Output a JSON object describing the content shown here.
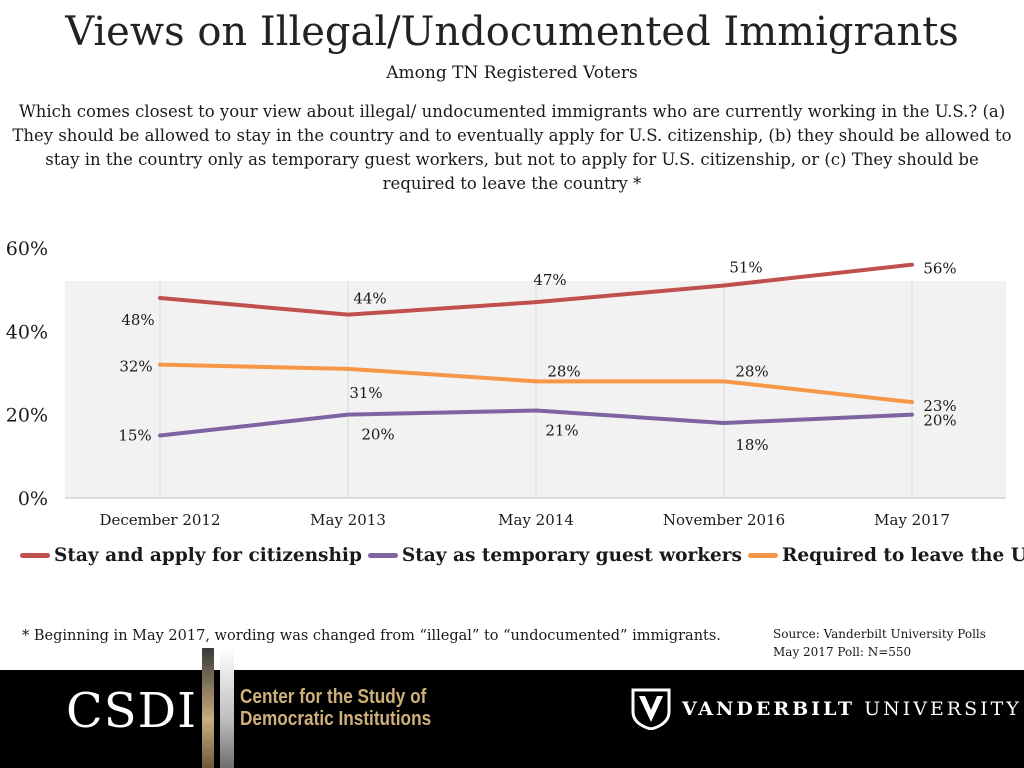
{
  "header": {
    "title": "Views on Illegal/Undocumented Immigrants",
    "subtitle": "Among TN Registered Voters",
    "question": "Which comes closest to your view about illegal/ undocumented immigrants who are currently working in the U.S.? (a) They should be allowed to stay in the country and to eventually apply for U.S. citizenship, (b) they should be allowed to stay in the country only as temporary guest workers, but not to apply for U.S. citizenship, or (c) They should be required to leave the country *"
  },
  "chart_data": {
    "type": "line",
    "categories": [
      "December 2012",
      "May 2013",
      "May 2014",
      "November 2016",
      "May 2017"
    ],
    "y_ticks": [
      "0%",
      "20%",
      "40%",
      "60%"
    ],
    "ylim": [
      0,
      60
    ],
    "series": [
      {
        "name": "Stay and apply for citizenship",
        "color": "#c0504d",
        "values": [
          48,
          44,
          47,
          51,
          56
        ],
        "labels": [
          "48%",
          "44%",
          "47%",
          "51%",
          "56%"
        ]
      },
      {
        "name": "Stay as temporary guest workers",
        "color": "#8064a2",
        "values": [
          15,
          20,
          21,
          18,
          20
        ],
        "labels": [
          "15%",
          "20%",
          "21%",
          "18%",
          "20%"
        ]
      },
      {
        "name": "Required to leave the U.S.",
        "color": "#f79646",
        "values": [
          32,
          31,
          28,
          28,
          23
        ],
        "labels": [
          "32%",
          "31%",
          "28%",
          "28%",
          "23%"
        ]
      }
    ]
  },
  "legend": {
    "items": [
      {
        "label": "Stay and apply for citizenship",
        "color": "#c0504d"
      },
      {
        "label": "Stay as temporary guest workers",
        "color": "#8064a2"
      },
      {
        "label": "Required to leave the U.S.",
        "color": "#f79646"
      }
    ]
  },
  "footnote": "* Beginning in May 2017, wording was changed from “illegal” to “undocumented” immigrants.",
  "source": "Source: Vanderbilt University Polls May 2017 Poll: N=550",
  "footer": {
    "csdi": "CSDI",
    "center_line1": "Center for the Study of",
    "center_line2": "Democratic Institutions",
    "vu_bold": "VANDERBILT",
    "vu_light": "UNIVERSITY",
    "gold": "#cfb07a"
  }
}
